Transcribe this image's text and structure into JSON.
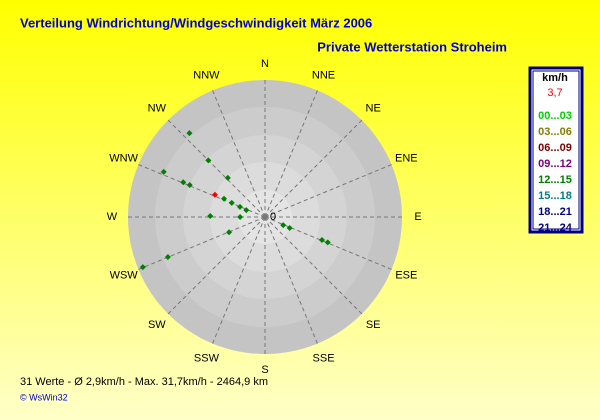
{
  "chart_data": {
    "type": "polar_scatter",
    "title": "Verteilung Windrichtung/Windgeschwindigkeit  März 2006",
    "subtitle": "Private Wetterstation Stroheim",
    "directions": [
      "N",
      "NNE",
      "NE",
      "ENE",
      "E",
      "ESE",
      "SE",
      "SSE",
      "S",
      "SSW",
      "SW",
      "WSW",
      "W",
      "WNW",
      "NW",
      "NNW"
    ],
    "center_label": "0",
    "rlim": [
      0,
      33
    ],
    "series": [
      {
        "x": [
          318,
          315,
          316.5,
          294,
          293,
          293,
          294,
          294,
          293,
          292,
          290,
          271,
          270,
          247.7,
          247.6,
          247,
          114,
          114,
          112,
          112
        ],
        "values": [
          27.2,
          19.3,
          13,
          26.7,
          21.4,
          19.7,
          13.2,
          10.8,
          8.7,
          6.5,
          4.8,
          13.2,
          6,
          31.8,
          25.3,
          9.4,
          4.8,
          6.5,
          14.8,
          16.3
        ],
        "colors": [
          "#008000",
          "#008000",
          "#008000",
          "#008000",
          "#008000",
          "#008000",
          "#ff0000",
          "#008000",
          "#008000",
          "#008000",
          "#008000",
          "#008000",
          "#008000",
          "#008000",
          "#008000",
          "#008000",
          "#008000",
          "#008000",
          "#008000",
          "#008000"
        ]
      }
    ],
    "legend": {
      "title": "km/h",
      "average": "3,7",
      "average_color": "#ff0000",
      "bins": [
        "00...03",
        "03...06",
        "06...09",
        "09...12",
        "12...15",
        "15...18",
        "18...21",
        "21...24"
      ],
      "colors": [
        "#00d000",
        "#808000",
        "#800000",
        "#800080",
        "#008000",
        "#008080",
        "#000080",
        "#000080"
      ]
    },
    "footer": "31 Werte   -   Ø 2,9km/h  -  Max. 31,7km/h   -   2464,9 km",
    "copyright": "© WsWin32"
  }
}
